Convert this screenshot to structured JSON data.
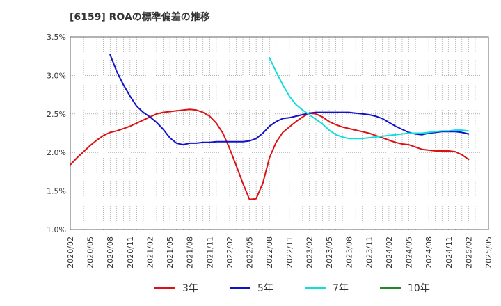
{
  "title": "[6159]  ROAの標準偏差の推移",
  "chart_data": {
    "type": "line",
    "title": "[6159]  ROAの標準偏差の推移",
    "xlabel": "",
    "ylabel": "",
    "x_range": [
      "2020/02",
      "2025/05"
    ],
    "ylim": [
      1.0,
      3.5
    ],
    "y_ticks": [
      1.0,
      1.5,
      2.0,
      2.5,
      3.0,
      3.5
    ],
    "y_tick_labels": [
      "1.0%",
      "1.5%",
      "2.0%",
      "2.5%",
      "3.0%",
      "3.5%"
    ],
    "x_tick_labels": [
      "2020/02",
      "2020/05",
      "2020/08",
      "2020/11",
      "2021/02",
      "2021/05",
      "2021/08",
      "2021/11",
      "2022/02",
      "2022/05",
      "2022/08",
      "2022/11",
      "2023/02",
      "2023/05",
      "2023/08",
      "2023/11",
      "2024/02",
      "2024/05",
      "2024/08",
      "2024/11",
      "2025/02",
      "2025/05"
    ],
    "grid": true,
    "legend_position": "bottom",
    "series": [
      {
        "name": "3年",
        "color": "#dd1111",
        "points": [
          [
            "2020/02",
            1.84
          ],
          [
            "2020/03",
            1.93
          ],
          [
            "2020/04",
            2.01
          ],
          [
            "2020/05",
            2.09
          ],
          [
            "2020/06",
            2.16
          ],
          [
            "2020/07",
            2.22
          ],
          [
            "2020/08",
            2.26
          ],
          [
            "2020/09",
            2.28
          ],
          [
            "2020/10",
            2.31
          ],
          [
            "2020/11",
            2.34
          ],
          [
            "2020/12",
            2.38
          ],
          [
            "2021/01",
            2.42
          ],
          [
            "2021/02",
            2.46
          ],
          [
            "2021/03",
            2.5
          ],
          [
            "2021/04",
            2.52
          ],
          [
            "2021/05",
            2.53
          ],
          [
            "2021/06",
            2.54
          ],
          [
            "2021/07",
            2.55
          ],
          [
            "2021/08",
            2.56
          ],
          [
            "2021/09",
            2.55
          ],
          [
            "2021/10",
            2.52
          ],
          [
            "2021/11",
            2.47
          ],
          [
            "2021/12",
            2.38
          ],
          [
            "2022/01",
            2.25
          ],
          [
            "2022/02",
            2.05
          ],
          [
            "2022/03",
            1.83
          ],
          [
            "2022/04",
            1.6
          ],
          [
            "2022/05",
            1.39
          ],
          [
            "2022/06",
            1.4
          ],
          [
            "2022/07",
            1.6
          ],
          [
            "2022/08",
            1.93
          ],
          [
            "2022/09",
            2.13
          ],
          [
            "2022/10",
            2.26
          ],
          [
            "2022/11",
            2.33
          ],
          [
            "2022/12",
            2.4
          ],
          [
            "2023/01",
            2.46
          ],
          [
            "2023/02",
            2.51
          ],
          [
            "2023/03",
            2.5
          ],
          [
            "2023/04",
            2.46
          ],
          [
            "2023/05",
            2.4
          ],
          [
            "2023/06",
            2.36
          ],
          [
            "2023/07",
            2.33
          ],
          [
            "2023/08",
            2.31
          ],
          [
            "2023/09",
            2.29
          ],
          [
            "2023/10",
            2.27
          ],
          [
            "2023/11",
            2.25
          ],
          [
            "2023/12",
            2.22
          ],
          [
            "2024/01",
            2.19
          ],
          [
            "2024/02",
            2.16
          ],
          [
            "2024/03",
            2.13
          ],
          [
            "2024/04",
            2.11
          ],
          [
            "2024/05",
            2.1
          ],
          [
            "2024/06",
            2.07
          ],
          [
            "2024/07",
            2.04
          ],
          [
            "2024/08",
            2.03
          ],
          [
            "2024/09",
            2.02
          ],
          [
            "2024/10",
            2.02
          ],
          [
            "2024/11",
            2.02
          ],
          [
            "2024/12",
            2.01
          ],
          [
            "2025/01",
            1.97
          ],
          [
            "2025/02",
            1.91
          ]
        ]
      },
      {
        "name": "5年",
        "color": "#1111cc",
        "points": [
          [
            "2020/08",
            3.27
          ],
          [
            "2020/09",
            3.05
          ],
          [
            "2020/10",
            2.88
          ],
          [
            "2020/11",
            2.73
          ],
          [
            "2020/12",
            2.6
          ],
          [
            "2021/01",
            2.52
          ],
          [
            "2021/02",
            2.46
          ],
          [
            "2021/03",
            2.39
          ],
          [
            "2021/04",
            2.3
          ],
          [
            "2021/05",
            2.19
          ],
          [
            "2021/06",
            2.12
          ],
          [
            "2021/07",
            2.1
          ],
          [
            "2021/08",
            2.12
          ],
          [
            "2021/09",
            2.12
          ],
          [
            "2021/10",
            2.13
          ],
          [
            "2021/11",
            2.13
          ],
          [
            "2021/12",
            2.14
          ],
          [
            "2022/01",
            2.14
          ],
          [
            "2022/02",
            2.14
          ],
          [
            "2022/03",
            2.14
          ],
          [
            "2022/04",
            2.14
          ],
          [
            "2022/05",
            2.15
          ],
          [
            "2022/06",
            2.18
          ],
          [
            "2022/07",
            2.25
          ],
          [
            "2022/08",
            2.34
          ],
          [
            "2022/09",
            2.4
          ],
          [
            "2022/10",
            2.44
          ],
          [
            "2022/11",
            2.45
          ],
          [
            "2022/12",
            2.47
          ],
          [
            "2023/01",
            2.49
          ],
          [
            "2023/02",
            2.51
          ],
          [
            "2023/03",
            2.52
          ],
          [
            "2023/04",
            2.52
          ],
          [
            "2023/05",
            2.52
          ],
          [
            "2023/06",
            2.52
          ],
          [
            "2023/07",
            2.52
          ],
          [
            "2023/08",
            2.52
          ],
          [
            "2023/09",
            2.51
          ],
          [
            "2023/10",
            2.5
          ],
          [
            "2023/11",
            2.49
          ],
          [
            "2023/12",
            2.47
          ],
          [
            "2024/01",
            2.44
          ],
          [
            "2024/02",
            2.39
          ],
          [
            "2024/03",
            2.34
          ],
          [
            "2024/04",
            2.3
          ],
          [
            "2024/05",
            2.26
          ],
          [
            "2024/06",
            2.24
          ],
          [
            "2024/07",
            2.23
          ],
          [
            "2024/08",
            2.25
          ],
          [
            "2024/09",
            2.26
          ],
          [
            "2024/10",
            2.27
          ],
          [
            "2024/11",
            2.27
          ],
          [
            "2024/12",
            2.27
          ],
          [
            "2025/01",
            2.26
          ],
          [
            "2025/02",
            2.24
          ]
        ]
      },
      {
        "name": "7年",
        "color": "#11dddd",
        "points": [
          [
            "2022/08",
            3.23
          ],
          [
            "2022/09",
            3.05
          ],
          [
            "2022/10",
            2.88
          ],
          [
            "2022/11",
            2.73
          ],
          [
            "2022/12",
            2.62
          ],
          [
            "2023/01",
            2.55
          ],
          [
            "2023/02",
            2.49
          ],
          [
            "2023/03",
            2.43
          ],
          [
            "2023/04",
            2.37
          ],
          [
            "2023/05",
            2.29
          ],
          [
            "2023/06",
            2.23
          ],
          [
            "2023/07",
            2.2
          ],
          [
            "2023/08",
            2.18
          ],
          [
            "2023/09",
            2.18
          ],
          [
            "2023/10",
            2.18
          ],
          [
            "2023/11",
            2.19
          ],
          [
            "2023/12",
            2.2
          ],
          [
            "2024/01",
            2.21
          ],
          [
            "2024/02",
            2.22
          ],
          [
            "2024/03",
            2.23
          ],
          [
            "2024/04",
            2.24
          ],
          [
            "2024/05",
            2.25
          ],
          [
            "2024/06",
            2.25
          ],
          [
            "2024/07",
            2.25
          ],
          [
            "2024/08",
            2.26
          ],
          [
            "2024/09",
            2.27
          ],
          [
            "2024/10",
            2.28
          ],
          [
            "2024/11",
            2.28
          ],
          [
            "2024/12",
            2.29
          ],
          [
            "2025/01",
            2.29
          ],
          [
            "2025/02",
            2.28
          ]
        ]
      },
      {
        "name": "10年",
        "color": "#228822",
        "points": []
      }
    ]
  }
}
